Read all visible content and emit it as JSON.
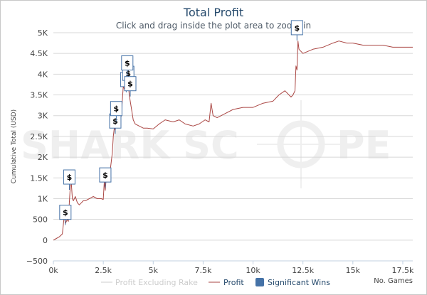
{
  "header": {
    "title": "Total Profit",
    "subtitle": "Click and drag inside the plot area to zoom-in"
  },
  "watermark": {
    "left": "SHARK SC",
    "right": "PE"
  },
  "chart_data": {
    "type": "line",
    "title": "Total Profit",
    "subtitle": "Click and drag inside the plot area to zoom-in",
    "xlabel": "No. Games",
    "ylabel": "Cumulative Total (USD)",
    "xlim": [
      0,
      18000
    ],
    "ylim": [
      -500,
      5000
    ],
    "x_ticks": [
      0,
      2500,
      5000,
      7500,
      10000,
      12500,
      15000,
      17500
    ],
    "x_tick_labels": [
      "0k",
      "2.5k",
      "5k",
      "7.5k",
      "10k",
      "12.5k",
      "15k",
      "17.5k"
    ],
    "y_ticks": [
      -500,
      0,
      500,
      1000,
      1500,
      2000,
      2500,
      3000,
      3500,
      4000,
      4500,
      5000
    ],
    "y_tick_labels": [
      "−500",
      "0",
      "500",
      "1K",
      "1.5K",
      "2K",
      "2.5K",
      "3K",
      "3.5K",
      "4K",
      "4.5K",
      "5K"
    ],
    "grid": "horizontal",
    "legend": "bottom-center",
    "series": [
      {
        "name": "Profit Excluding Rake",
        "color": "#cccccc",
        "visible": false,
        "x": [],
        "y": []
      },
      {
        "name": "Profit",
        "color": "#aa4643",
        "x": [
          0,
          150,
          300,
          450,
          550,
          600,
          700,
          750,
          800,
          850,
          900,
          950,
          1000,
          1100,
          1200,
          1300,
          1400,
          1500,
          1600,
          1800,
          2000,
          2200,
          2400,
          2500,
          2550,
          2600,
          2650,
          2700,
          2750,
          2800,
          2850,
          2900,
          2950,
          3000,
          3050,
          3100,
          3150,
          3200,
          3300,
          3400,
          3500,
          3600,
          3700,
          3750,
          3800,
          3900,
          4000,
          4100,
          4300,
          4500,
          4700,
          5000,
          5300,
          5600,
          6000,
          6300,
          6600,
          7000,
          7300,
          7600,
          7800,
          7900,
          8000,
          8200,
          8600,
          9000,
          9500,
          10000,
          10500,
          11000,
          11300,
          11600,
          11900,
          12000,
          12100,
          12150,
          12200,
          12250,
          12300,
          12500,
          13000,
          13500,
          14000,
          14300,
          14700,
          15000,
          15500,
          16000,
          16500,
          17000,
          17500,
          18000
        ],
        "y": [
          0,
          40,
          80,
          150,
          600,
          400,
          500,
          450,
          900,
          1300,
          1350,
          1000,
          950,
          1050,
          900,
          850,
          900,
          950,
          950,
          1000,
          1050,
          1000,
          1000,
          980,
          1400,
          1200,
          1500,
          1400,
          1500,
          1550,
          1700,
          1900,
          2100,
          2500,
          2700,
          2650,
          2900,
          3000,
          2800,
          3000,
          3700,
          3600,
          3750,
          3800,
          3500,
          3200,
          2900,
          2800,
          2750,
          2700,
          2700,
          2680,
          2800,
          2900,
          2850,
          2900,
          2800,
          2750,
          2800,
          2900,
          2850,
          3300,
          3000,
          2950,
          3050,
          3150,
          3200,
          3200,
          3300,
          3350,
          3500,
          3600,
          3450,
          3500,
          3600,
          4200,
          4100,
          4800,
          4600,
          4500,
          4600,
          4650,
          4750,
          4800,
          4750,
          4750,
          4700,
          4700,
          4700,
          4650,
          4650,
          4650
        ]
      }
    ],
    "annotations": {
      "name": "Significant Wins",
      "color": "#4572a7",
      "symbol": "$",
      "points": [
        {
          "x": 600,
          "y": 500
        },
        {
          "x": 800,
          "y": 1350
        },
        {
          "x": 2600,
          "y": 1400
        },
        {
          "x": 3100,
          "y": 2700
        },
        {
          "x": 3150,
          "y": 3000
        },
        {
          "x": 3650,
          "y": 3700
        },
        {
          "x": 3750,
          "y": 3850
        },
        {
          "x": 3850,
          "y": 3600
        },
        {
          "x": 3700,
          "y": 4100
        },
        {
          "x": 12200,
          "y": 4950
        }
      ]
    }
  }
}
